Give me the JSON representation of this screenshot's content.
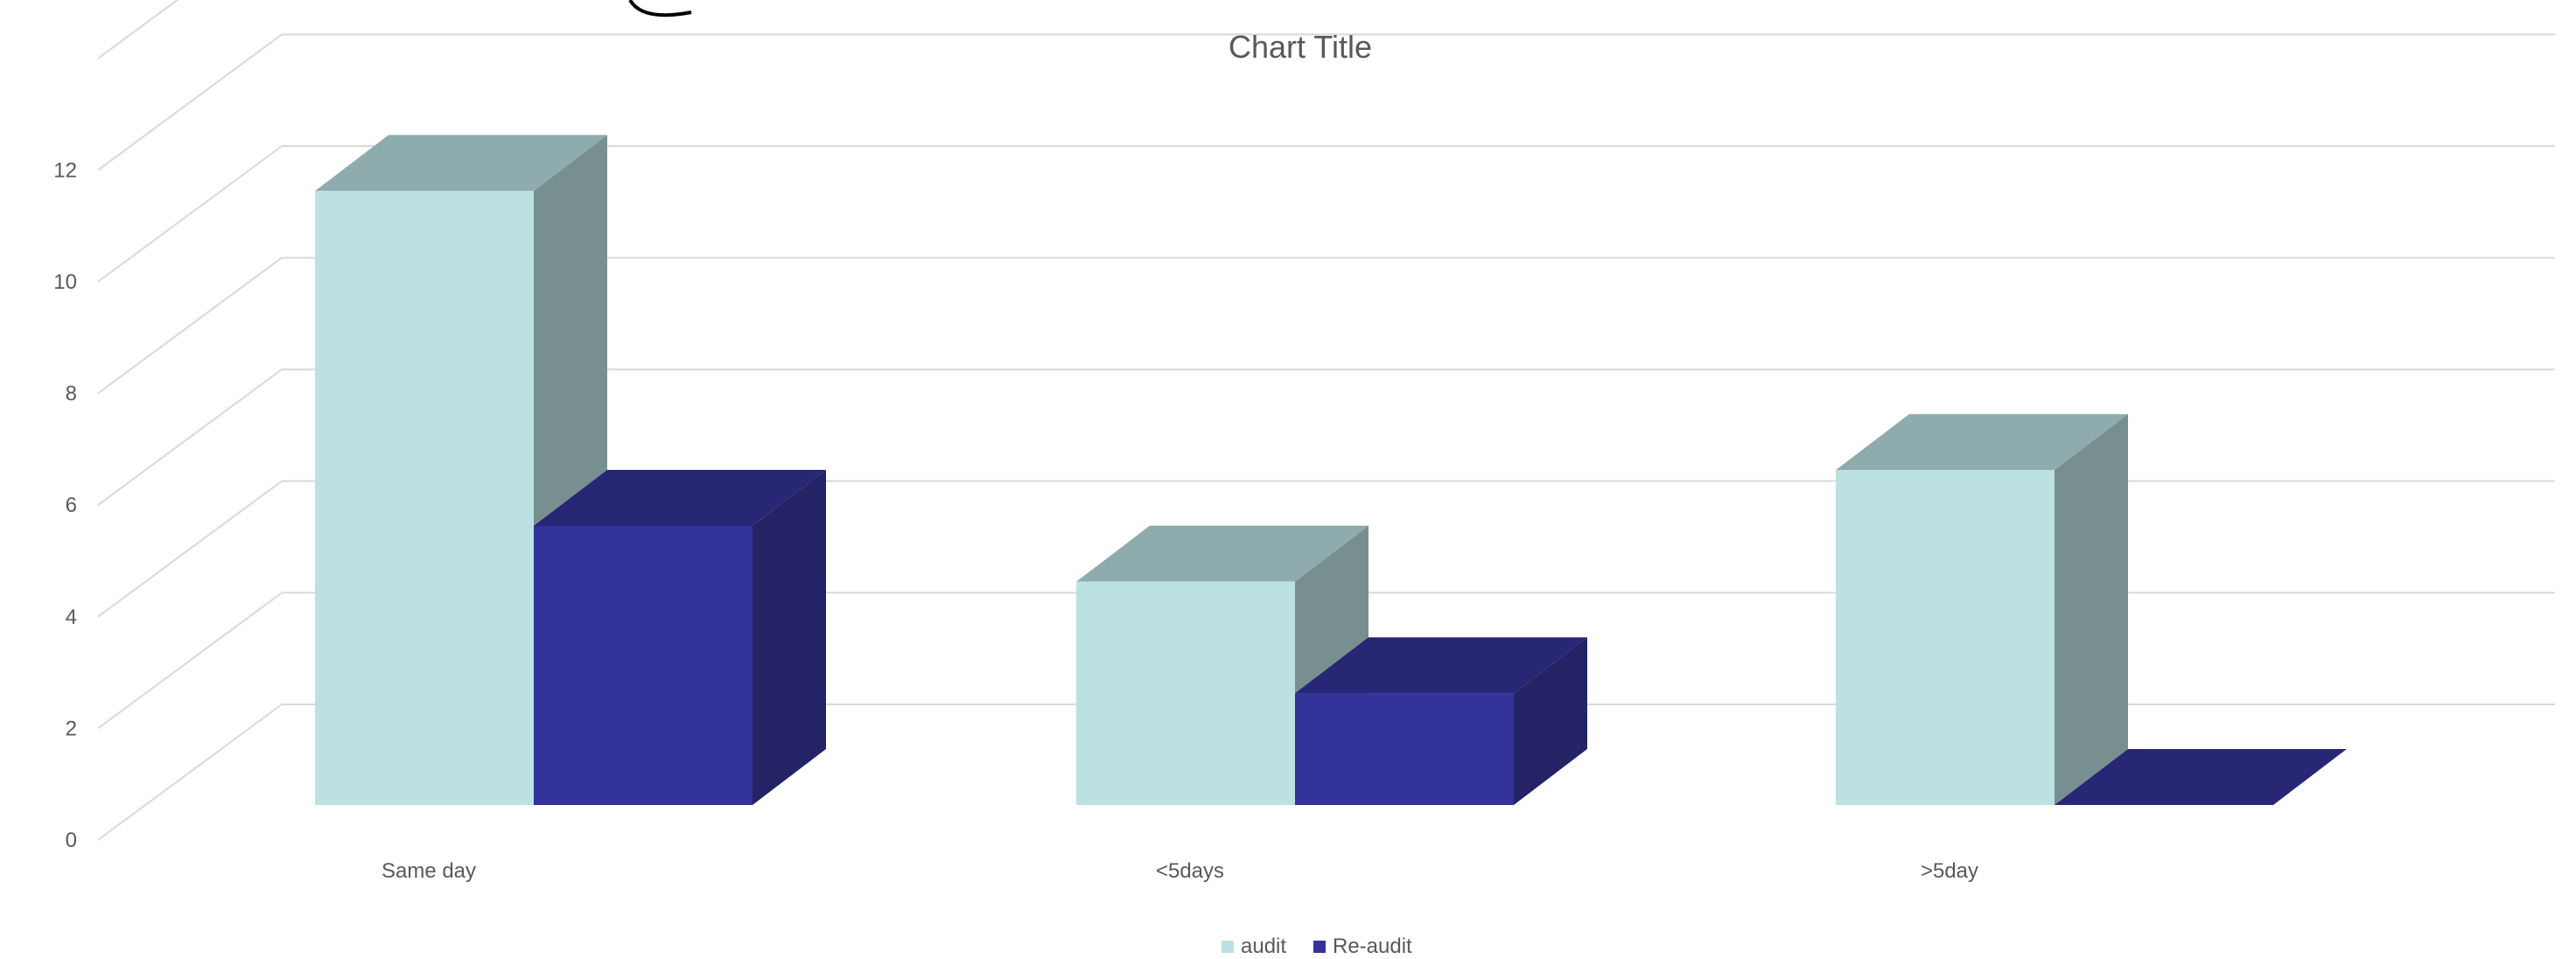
{
  "chart_data": {
    "type": "bar",
    "style": "3d-clustered-column",
    "title": "Chart Title",
    "xlabel": "",
    "ylabel": "",
    "categories": [
      "Same day",
      "<5days",
      ">5day"
    ],
    "series": [
      {
        "name": "audit",
        "values": [
          11,
          4,
          6
        ],
        "color": "#BCE1E3"
      },
      {
        "name": "Re-audit",
        "values": [
          5,
          2,
          0
        ],
        "color": "#333399"
      }
    ],
    "y_ticks": [
      "0",
      "2",
      "4",
      "6",
      "8",
      "10",
      "12"
    ],
    "ylim": [
      0,
      14
    ],
    "grid": true,
    "legend": "bottom-center"
  }
}
